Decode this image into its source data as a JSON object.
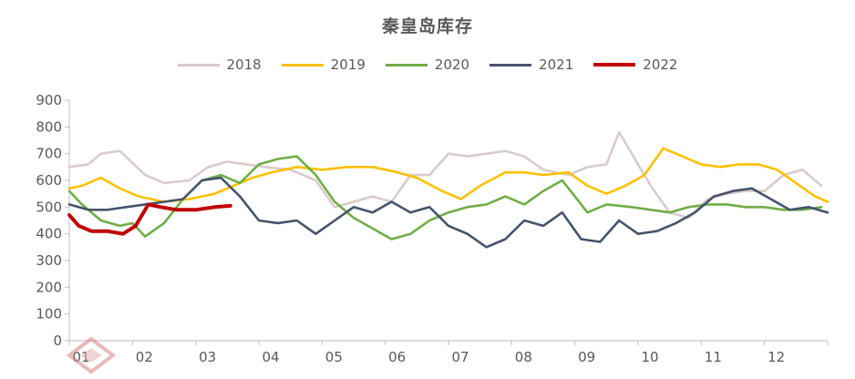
{
  "chart_data": {
    "type": "line",
    "title": "秦皇岛库存",
    "xlabel": "",
    "ylabel": "",
    "ylim": [
      0,
      900
    ],
    "yticks": [
      0,
      100,
      200,
      300,
      400,
      500,
      600,
      700,
      800,
      900
    ],
    "xticks": [
      "01",
      "02",
      "03",
      "04",
      "05",
      "06",
      "07",
      "08",
      "09",
      "10",
      "11",
      "12"
    ],
    "xlim": [
      1,
      13
    ],
    "legend_position": "top",
    "grid": false,
    "series": [
      {
        "name": "2018",
        "color": "#d9cccc",
        "x": [
          1,
          1.3,
          1.5,
          1.8,
          2.2,
          2.5,
          2.9,
          3.2,
          3.5,
          3.8,
          4.1,
          4.5,
          4.9,
          5.2,
          5.5,
          5.8,
          6.1,
          6.4,
          6.7,
          7.0,
          7.3,
          7.6,
          7.9,
          8.2,
          8.5,
          8.9,
          9.2,
          9.5,
          9.7,
          9.9,
          10.2,
          10.5,
          10.8,
          11.1,
          11.4,
          11.7,
          12.0,
          12.3,
          12.6,
          12.9
        ],
        "values": [
          650,
          660,
          700,
          710,
          620,
          590,
          600,
          650,
          670,
          660,
          650,
          640,
          600,
          500,
          520,
          540,
          520,
          620,
          620,
          700,
          690,
          700,
          710,
          690,
          640,
          620,
          650,
          660,
          780,
          700,
          580,
          480,
          460,
          530,
          550,
          560,
          560,
          620,
          640,
          580
        ]
      },
      {
        "name": "2019",
        "color": "#ffc000",
        "x": [
          1,
          1.2,
          1.5,
          1.8,
          2.1,
          2.5,
          2.9,
          3.3,
          3.6,
          3.9,
          4.2,
          4.6,
          5.0,
          5.4,
          5.8,
          6.2,
          6.5,
          6.9,
          7.2,
          7.5,
          7.9,
          8.2,
          8.5,
          8.9,
          9.2,
          9.5,
          9.8,
          10.1,
          10.4,
          10.7,
          11.0,
          11.3,
          11.6,
          11.9,
          12.2,
          12.5,
          12.8,
          13.0
        ],
        "values": [
          570,
          580,
          610,
          570,
          540,
          520,
          530,
          550,
          580,
          610,
          630,
          650,
          640,
          650,
          650,
          630,
          610,
          560,
          530,
          580,
          630,
          630,
          620,
          630,
          580,
          550,
          580,
          620,
          720,
          690,
          660,
          650,
          660,
          660,
          640,
          590,
          540,
          520
        ]
      },
      {
        "name": "2020",
        "color": "#70ad47",
        "x": [
          1,
          1.2,
          1.5,
          1.8,
          2.0,
          2.2,
          2.5,
          2.8,
          3.1,
          3.4,
          3.7,
          4.0,
          4.3,
          4.6,
          4.9,
          5.2,
          5.5,
          5.8,
          6.1,
          6.4,
          6.7,
          7.0,
          7.3,
          7.6,
          7.9,
          8.2,
          8.5,
          8.8,
          9.0,
          9.2,
          9.5,
          9.9,
          10.2,
          10.5,
          10.8,
          11.1,
          11.4,
          11.7,
          12.0,
          12.3,
          12.6,
          12.9
        ],
        "values": [
          560,
          510,
          450,
          430,
          440,
          390,
          440,
          530,
          600,
          620,
          590,
          660,
          680,
          690,
          620,
          520,
          460,
          420,
          380,
          400,
          450,
          480,
          500,
          510,
          540,
          510,
          560,
          600,
          540,
          480,
          510,
          500,
          490,
          480,
          500,
          510,
          510,
          500,
          500,
          490,
          490,
          500
        ]
      },
      {
        "name": "2021",
        "color": "#44546a",
        "x": [
          1,
          1.3,
          1.6,
          1.9,
          2.2,
          2.5,
          2.8,
          3.1,
          3.4,
          3.7,
          4.0,
          4.3,
          4.6,
          4.9,
          5.2,
          5.5,
          5.8,
          6.1,
          6.4,
          6.7,
          7.0,
          7.3,
          7.6,
          7.9,
          8.2,
          8.5,
          8.8,
          9.1,
          9.4,
          9.7,
          10.0,
          10.3,
          10.6,
          10.9,
          11.2,
          11.5,
          11.8,
          12.1,
          12.4,
          12.7,
          13.0
        ],
        "values": [
          510,
          490,
          490,
          500,
          510,
          520,
          530,
          600,
          610,
          540,
          450,
          440,
          450,
          400,
          450,
          500,
          480,
          520,
          480,
          500,
          430,
          400,
          350,
          380,
          450,
          430,
          480,
          380,
          370,
          450,
          400,
          410,
          440,
          480,
          540,
          560,
          570,
          530,
          490,
          500,
          480
        ]
      },
      {
        "name": "2022",
        "color": "#c00000",
        "x": [
          1,
          1.15,
          1.35,
          1.6,
          1.85,
          2.05,
          2.25,
          2.45,
          2.7,
          3.0,
          3.3,
          3.55
        ],
        "values": [
          470,
          430,
          410,
          410,
          400,
          430,
          510,
          500,
          490,
          490,
          500,
          505
        ]
      }
    ]
  }
}
